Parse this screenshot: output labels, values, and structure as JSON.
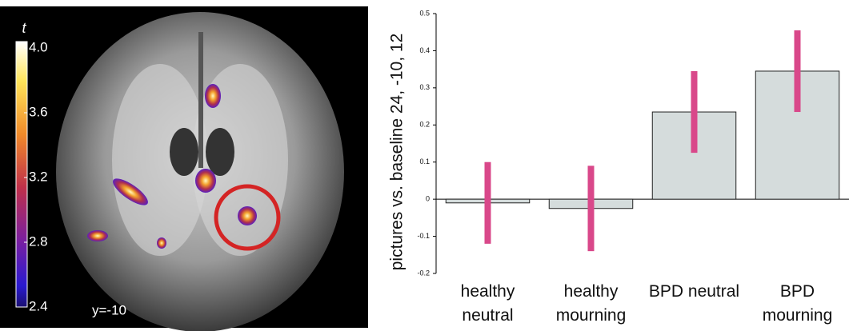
{
  "brain_panel": {
    "colorbar_label": "t",
    "colorbar_lim": [
      2.4,
      4.0
    ],
    "colorbar_ticks": [
      {
        "value": 4.0,
        "label": "4.0"
      },
      {
        "value": 3.6,
        "label": "3.6"
      },
      {
        "value": 3.2,
        "label": "3.2"
      },
      {
        "value": 2.8,
        "label": "2.8"
      },
      {
        "value": 2.4,
        "label": "2.4"
      }
    ],
    "slice_label": "y=-10"
  },
  "chart_data": {
    "type": "bar",
    "y_label": "pictures vs. baseline  24, -10, 12",
    "categories": [
      "healthy neutral",
      "healthy mourning",
      "BPD neutral",
      "BPD mourning"
    ],
    "values": [
      -0.01,
      -0.025,
      0.235,
      0.345
    ],
    "errors": [
      0.11,
      0.115,
      0.11,
      0.11
    ],
    "color": "#d5dcdc",
    "error_color": "#d9488a",
    "ylim": [
      -0.2,
      0.5
    ],
    "yticks": [
      -0.2,
      -0.1,
      0,
      0.1,
      0.2,
      0.3,
      0.4,
      0.5
    ]
  }
}
